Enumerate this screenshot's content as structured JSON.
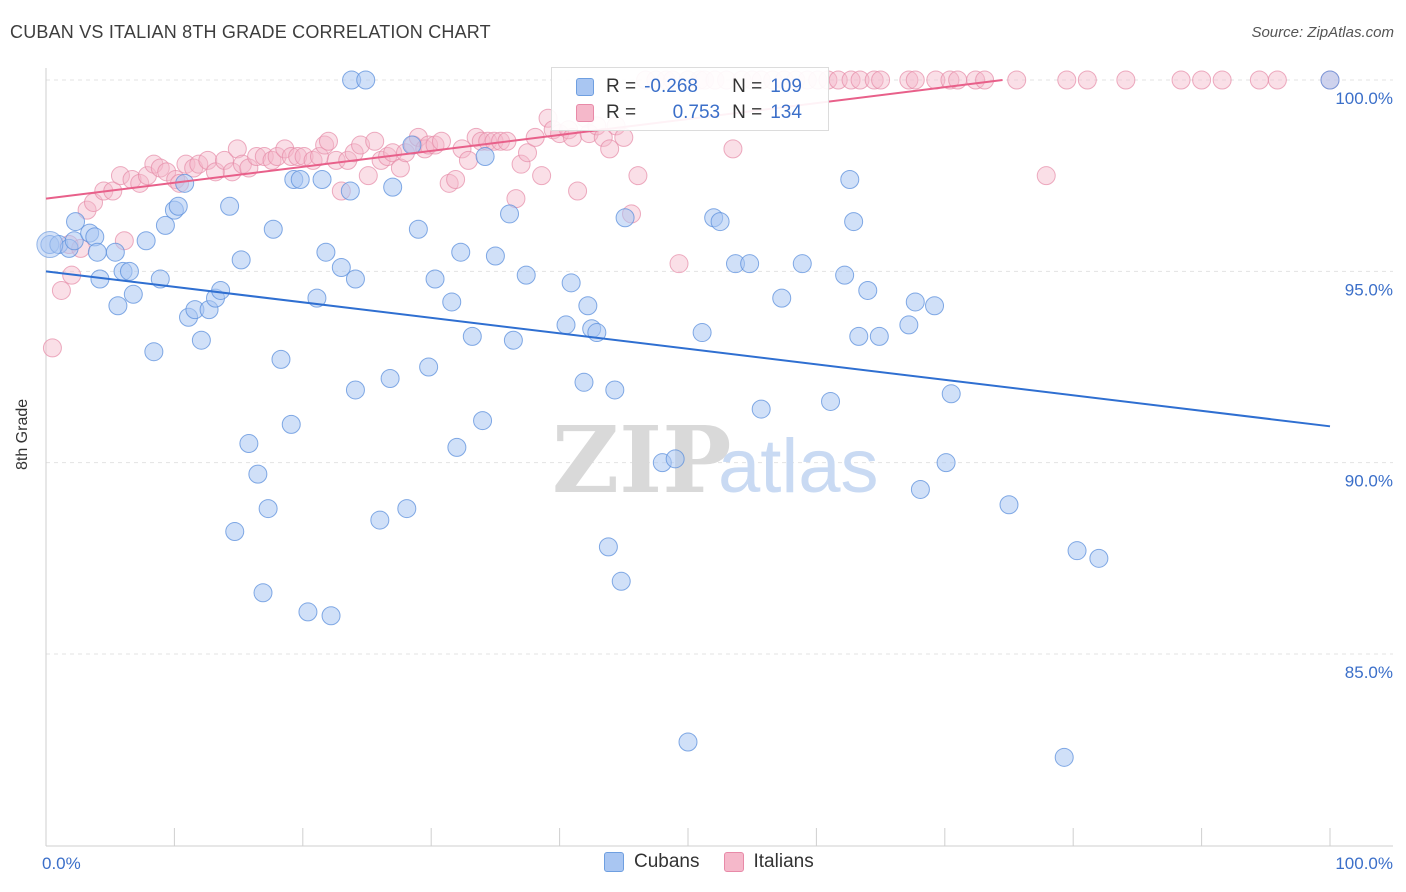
{
  "title": "CUBAN VS ITALIAN 8TH GRADE CORRELATION CHART",
  "source": "Source: ZipAtlas.com",
  "watermark": {
    "zip": "ZIP",
    "atlas": "atlas"
  },
  "legend": {
    "rows": [
      {
        "r_label": "R =",
        "r_value": "-0.268",
        "n_label": "N =",
        "n_value": "109",
        "color": "#a9c6f2",
        "border": "#6f9fe0"
      },
      {
        "r_label": "R =",
        "r_value": "0.753",
        "n_label": "N =",
        "n_value": "134",
        "color": "#f5b8ca",
        "border": "#e88aa8"
      }
    ]
  },
  "bottom_legend": [
    {
      "label": "Cubans",
      "color": "#a9c6f2",
      "border": "#6f9fe0"
    },
    {
      "label": "Italians",
      "color": "#f5b8ca",
      "border": "#e88aa8"
    }
  ],
  "chart_data": {
    "type": "scatter",
    "title": "CUBAN VS ITALIAN 8TH GRADE CORRELATION CHART",
    "xlabel": "",
    "ylabel": "8th Grade",
    "xlim": [
      0,
      100
    ],
    "ylim": [
      80.5,
      100.5
    ],
    "x_ticks": [
      "0.0%",
      "100.0%"
    ],
    "y_ticks": [
      {
        "value": 100,
        "label": "100.0%"
      },
      {
        "value": 95,
        "label": "95.0%"
      },
      {
        "value": 90,
        "label": "90.0%"
      },
      {
        "value": 85,
        "label": "85.0%"
      }
    ],
    "grid": true,
    "legend_position": "top-center",
    "colors": {
      "cubans_fill": "#a9c6f2",
      "cubans_edge": "#5b8fdc",
      "cubans_line": "#2f6fd1",
      "italians_fill": "#f5b8ca",
      "italians_edge": "#e58aa6",
      "italians_line": "#e8608a"
    },
    "series": [
      {
        "name": "Cubans",
        "r": -0.268,
        "n": 109,
        "trend": {
          "x": [
            0,
            100
          ],
          "y": [
            95.0,
            90.95
          ]
        },
        "points": [
          [
            0.3,
            95.7
          ],
          [
            1.0,
            95.7
          ],
          [
            1.8,
            95.6
          ],
          [
            2.2,
            95.8
          ],
          [
            2.3,
            96.3
          ],
          [
            3.4,
            96.0
          ],
          [
            3.8,
            95.9
          ],
          [
            4.0,
            95.5
          ],
          [
            4.2,
            94.8
          ],
          [
            5.4,
            95.5
          ],
          [
            5.6,
            94.1
          ],
          [
            6.0,
            95.0
          ],
          [
            6.5,
            95.0
          ],
          [
            6.8,
            94.4
          ],
          [
            7.8,
            95.8
          ],
          [
            8.4,
            92.9
          ],
          [
            8.9,
            94.8
          ],
          [
            9.3,
            96.2
          ],
          [
            10.0,
            96.6
          ],
          [
            10.3,
            96.7
          ],
          [
            10.8,
            97.3
          ],
          [
            11.1,
            93.8
          ],
          [
            11.6,
            94.0
          ],
          [
            12.1,
            93.2
          ],
          [
            12.7,
            94.0
          ],
          [
            13.2,
            94.3
          ],
          [
            13.6,
            94.5
          ],
          [
            14.3,
            96.7
          ],
          [
            14.7,
            88.2
          ],
          [
            15.2,
            95.3
          ],
          [
            15.8,
            90.5
          ],
          [
            16.5,
            89.7
          ],
          [
            16.9,
            86.6
          ],
          [
            17.3,
            88.8
          ],
          [
            17.7,
            96.1
          ],
          [
            18.3,
            92.7
          ],
          [
            19.1,
            91.0
          ],
          [
            19.3,
            97.4
          ],
          [
            19.8,
            97.4
          ],
          [
            20.4,
            86.1
          ],
          [
            21.1,
            94.3
          ],
          [
            21.5,
            97.4
          ],
          [
            21.8,
            95.5
          ],
          [
            22.2,
            86.0
          ],
          [
            23.0,
            95.1
          ],
          [
            23.7,
            97.1
          ],
          [
            23.8,
            100.0
          ],
          [
            24.1,
            94.8
          ],
          [
            24.1,
            91.9
          ],
          [
            24.9,
            100.0
          ],
          [
            26.0,
            88.5
          ],
          [
            26.8,
            92.2
          ],
          [
            27.0,
            97.2
          ],
          [
            28.1,
            88.8
          ],
          [
            28.5,
            98.3
          ],
          [
            29.0,
            96.1
          ],
          [
            29.8,
            92.5
          ],
          [
            30.3,
            94.8
          ],
          [
            31.6,
            94.2
          ],
          [
            32.0,
            90.4
          ],
          [
            32.3,
            95.5
          ],
          [
            33.2,
            93.3
          ],
          [
            34.0,
            91.1
          ],
          [
            34.2,
            98.0
          ],
          [
            35.0,
            95.4
          ],
          [
            36.1,
            96.5
          ],
          [
            36.4,
            93.2
          ],
          [
            37.4,
            94.9
          ],
          [
            40.5,
            93.6
          ],
          [
            40.9,
            94.7
          ],
          [
            41.9,
            92.1
          ],
          [
            42.2,
            94.1
          ],
          [
            42.5,
            93.5
          ],
          [
            42.9,
            93.4
          ],
          [
            43.8,
            87.8
          ],
          [
            44.3,
            91.9
          ],
          [
            44.8,
            86.9
          ],
          [
            45.1,
            96.4
          ],
          [
            48.0,
            90.0
          ],
          [
            49.0,
            90.1
          ],
          [
            50.0,
            82.7
          ],
          [
            51.1,
            93.4
          ],
          [
            52.0,
            96.4
          ],
          [
            52.5,
            96.3
          ],
          [
            53.7,
            95.2
          ],
          [
            54.8,
            95.2
          ],
          [
            55.7,
            91.4
          ],
          [
            57.3,
            94.3
          ],
          [
            58.9,
            95.2
          ],
          [
            61.1,
            91.6
          ],
          [
            62.2,
            94.9
          ],
          [
            62.6,
            97.4
          ],
          [
            62.9,
            96.3
          ],
          [
            63.3,
            93.3
          ],
          [
            64.0,
            94.5
          ],
          [
            64.9,
            93.3
          ],
          [
            67.2,
            93.6
          ],
          [
            67.7,
            94.2
          ],
          [
            68.1,
            89.3
          ],
          [
            69.2,
            94.1
          ],
          [
            70.1,
            90.0
          ],
          [
            70.5,
            91.8
          ],
          [
            75.0,
            88.9
          ],
          [
            79.3,
            82.3
          ],
          [
            80.3,
            87.7
          ],
          [
            82.0,
            87.5
          ],
          [
            100.0,
            100.0
          ]
        ]
      },
      {
        "name": "Italians",
        "r": 0.753,
        "n": 134,
        "trend": {
          "x": [
            0,
            74.5
          ],
          "y": [
            96.9,
            100.0
          ]
        },
        "points": [
          [
            0.5,
            93.0
          ],
          [
            1.2,
            94.5
          ],
          [
            1.8,
            95.7
          ],
          [
            2.0,
            94.9
          ],
          [
            2.7,
            95.6
          ],
          [
            3.2,
            96.6
          ],
          [
            3.7,
            96.8
          ],
          [
            4.5,
            97.1
          ],
          [
            5.2,
            97.1
          ],
          [
            5.8,
            97.5
          ],
          [
            6.1,
            95.8
          ],
          [
            6.7,
            97.4
          ],
          [
            7.3,
            97.3
          ],
          [
            7.9,
            97.5
          ],
          [
            8.4,
            97.8
          ],
          [
            8.9,
            97.7
          ],
          [
            9.4,
            97.6
          ],
          [
            10.1,
            97.4
          ],
          [
            10.4,
            97.3
          ],
          [
            10.9,
            97.8
          ],
          [
            11.5,
            97.7
          ],
          [
            11.9,
            97.8
          ],
          [
            12.6,
            97.9
          ],
          [
            13.2,
            97.6
          ],
          [
            13.9,
            97.9
          ],
          [
            14.5,
            97.6
          ],
          [
            14.9,
            98.2
          ],
          [
            15.3,
            97.8
          ],
          [
            15.8,
            97.7
          ],
          [
            16.4,
            98.0
          ],
          [
            17.0,
            98.0
          ],
          [
            17.6,
            97.9
          ],
          [
            18.0,
            98.0
          ],
          [
            18.6,
            98.2
          ],
          [
            19.1,
            98.0
          ],
          [
            19.6,
            98.0
          ],
          [
            20.1,
            98.0
          ],
          [
            20.8,
            97.9
          ],
          [
            21.3,
            98.0
          ],
          [
            21.7,
            98.3
          ],
          [
            22.0,
            98.4
          ],
          [
            22.6,
            97.9
          ],
          [
            23.0,
            97.1
          ],
          [
            23.5,
            97.9
          ],
          [
            24.0,
            98.1
          ],
          [
            24.5,
            98.3
          ],
          [
            25.1,
            97.5
          ],
          [
            25.6,
            98.4
          ],
          [
            26.1,
            97.9
          ],
          [
            26.6,
            98.0
          ],
          [
            27.0,
            98.1
          ],
          [
            27.6,
            97.7
          ],
          [
            28.0,
            98.1
          ],
          [
            28.6,
            98.3
          ],
          [
            29.0,
            98.5
          ],
          [
            29.5,
            98.2
          ],
          [
            29.8,
            98.3
          ],
          [
            30.3,
            98.3
          ],
          [
            30.8,
            98.4
          ],
          [
            31.4,
            97.3
          ],
          [
            31.9,
            97.4
          ],
          [
            32.4,
            98.2
          ],
          [
            32.9,
            97.9
          ],
          [
            33.5,
            98.5
          ],
          [
            33.9,
            98.4
          ],
          [
            34.4,
            98.4
          ],
          [
            34.9,
            98.4
          ],
          [
            35.4,
            98.4
          ],
          [
            35.9,
            98.4
          ],
          [
            36.6,
            96.9
          ],
          [
            37.0,
            97.8
          ],
          [
            37.5,
            98.1
          ],
          [
            38.1,
            98.5
          ],
          [
            38.6,
            97.5
          ],
          [
            39.1,
            99.0
          ],
          [
            39.5,
            98.7
          ],
          [
            40.0,
            98.6
          ],
          [
            40.7,
            98.7
          ],
          [
            41.0,
            98.5
          ],
          [
            41.4,
            97.1
          ],
          [
            42.0,
            99.0
          ],
          [
            42.3,
            98.6
          ],
          [
            42.9,
            98.8
          ],
          [
            43.4,
            98.5
          ],
          [
            43.9,
            98.2
          ],
          [
            44.4,
            98.8
          ],
          [
            45.0,
            98.5
          ],
          [
            45.6,
            96.5
          ],
          [
            46.1,
            97.5
          ],
          [
            46.7,
            100.0
          ],
          [
            47.5,
            100.0
          ],
          [
            48.3,
            100.0
          ],
          [
            48.8,
            100.0
          ],
          [
            49.3,
            95.2
          ],
          [
            50.0,
            100.0
          ],
          [
            50.9,
            100.0
          ],
          [
            51.3,
            100.0
          ],
          [
            52.1,
            100.0
          ],
          [
            53.0,
            100.0
          ],
          [
            53.5,
            98.2
          ],
          [
            54.2,
            100.0
          ],
          [
            55.0,
            100.0
          ],
          [
            55.7,
            100.0
          ],
          [
            56.6,
            100.0
          ],
          [
            57.5,
            100.0
          ],
          [
            58.4,
            100.0
          ],
          [
            59.3,
            100.0
          ],
          [
            60.1,
            100.0
          ],
          [
            60.9,
            100.0
          ],
          [
            61.7,
            100.0
          ],
          [
            62.7,
            100.0
          ],
          [
            63.4,
            100.0
          ],
          [
            64.5,
            100.0
          ],
          [
            65.0,
            100.0
          ],
          [
            67.2,
            100.0
          ],
          [
            67.7,
            100.0
          ],
          [
            69.3,
            100.0
          ],
          [
            70.4,
            100.0
          ],
          [
            71.0,
            100.0
          ],
          [
            72.4,
            100.0
          ],
          [
            73.1,
            100.0
          ],
          [
            75.6,
            100.0
          ],
          [
            77.9,
            97.5
          ],
          [
            79.5,
            100.0
          ],
          [
            81.1,
            100.0
          ],
          [
            84.1,
            100.0
          ],
          [
            88.4,
            100.0
          ],
          [
            90.0,
            100.0
          ],
          [
            91.6,
            100.0
          ],
          [
            94.5,
            100.0
          ],
          [
            95.9,
            100.0
          ],
          [
            100.0,
            100.0
          ]
        ]
      }
    ]
  }
}
